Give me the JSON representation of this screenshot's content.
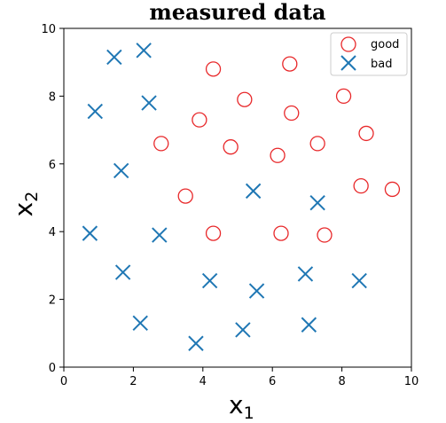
{
  "chart_data": {
    "type": "scatter",
    "title": "measured data",
    "xlabel": "x",
    "xlabel_sub": "1",
    "ylabel": "x",
    "ylabel_sub": "2",
    "xlim": [
      0,
      10
    ],
    "ylim": [
      0,
      10
    ],
    "xticks": [
      "0",
      "2",
      "4",
      "6",
      "8",
      "10"
    ],
    "yticks": [
      "0",
      "2",
      "4",
      "6",
      "8",
      "10"
    ],
    "grid": false,
    "legend_position": "top-right",
    "series": [
      {
        "name": "good",
        "marker": "circle-open",
        "color": "#e8282a",
        "points": [
          [
            4.3,
            8.8
          ],
          [
            6.5,
            8.95
          ],
          [
            5.2,
            7.9
          ],
          [
            3.9,
            7.3
          ],
          [
            6.55,
            7.5
          ],
          [
            8.05,
            8.0
          ],
          [
            2.8,
            6.6
          ],
          [
            4.8,
            6.5
          ],
          [
            7.3,
            6.6
          ],
          [
            8.7,
            6.9
          ],
          [
            6.15,
            6.25
          ],
          [
            3.5,
            5.05
          ],
          [
            8.55,
            5.35
          ],
          [
            9.45,
            5.25
          ],
          [
            4.3,
            3.95
          ],
          [
            6.25,
            3.95
          ],
          [
            7.5,
            3.9
          ]
        ]
      },
      {
        "name": "bad",
        "marker": "x",
        "color": "#1f77b4",
        "points": [
          [
            1.45,
            9.15
          ],
          [
            2.3,
            9.35
          ],
          [
            0.9,
            7.55
          ],
          [
            2.45,
            7.8
          ],
          [
            1.65,
            5.8
          ],
          [
            5.45,
            5.2
          ],
          [
            7.3,
            4.85
          ],
          [
            0.75,
            3.95
          ],
          [
            2.75,
            3.9
          ],
          [
            1.7,
            2.8
          ],
          [
            4.2,
            2.55
          ],
          [
            5.55,
            2.25
          ],
          [
            6.95,
            2.75
          ],
          [
            8.5,
            2.55
          ],
          [
            2.2,
            1.3
          ],
          [
            3.8,
            0.7
          ],
          [
            5.15,
            1.1
          ],
          [
            7.05,
            1.25
          ]
        ]
      }
    ]
  }
}
